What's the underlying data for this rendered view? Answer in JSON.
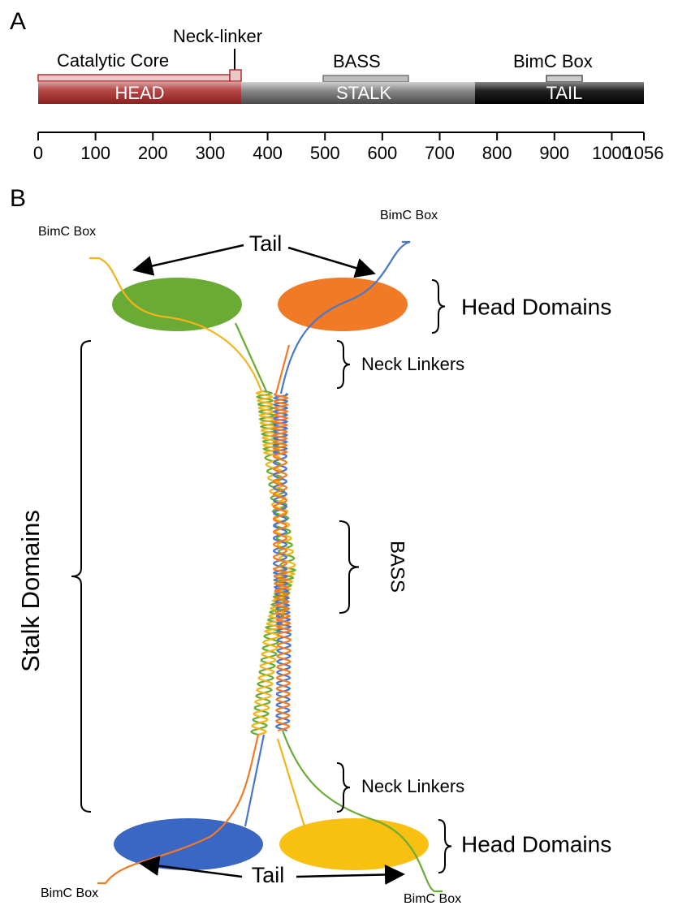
{
  "panel_a": {
    "label": "A",
    "domains": {
      "head": "HEAD",
      "stalk": "STALK",
      "tail": "TAIL"
    },
    "annotations": {
      "catalytic_core": "Catalytic Core",
      "neck_linker": "Neck-linker",
      "bass": "BASS",
      "bimc_box": "BimC Box"
    },
    "axis": {
      "ticks": [
        0,
        100,
        200,
        300,
        400,
        500,
        600,
        700,
        800,
        900,
        1000,
        1056
      ]
    }
  },
  "panel_b": {
    "label": "B",
    "labels": {
      "bimc_top_left": "BimC Box",
      "bimc_top_right": "BimC Box",
      "tail_top": "Tail",
      "head_domains_top": "Head Domains",
      "neck_linkers_top": "Neck Linkers",
      "stalk_domains": "Stalk Domains",
      "bass": "BASS",
      "neck_linkers_bottom": "Neck Linkers",
      "head_domains_bottom": "Head Domains",
      "tail_bottom": "Tail",
      "bimc_bottom_left": "BimC Box",
      "bimc_bottom_right": "BimC Box"
    }
  }
}
